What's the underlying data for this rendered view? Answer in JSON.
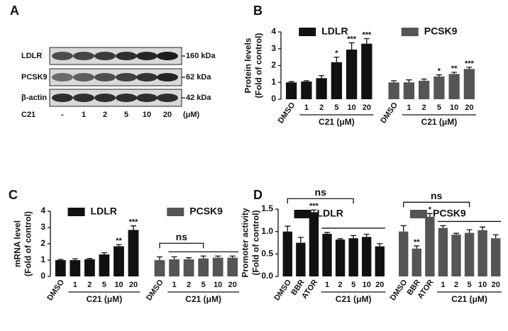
{
  "blot": {
    "panel_label": "A",
    "rows": [
      "LDLR",
      "PCSK9",
      "β-actin"
    ],
    "sizes": [
      "160 kDa",
      "62 kDa",
      "42 kDa"
    ],
    "treatment": "C21",
    "lanes": [
      "-",
      "1",
      "2",
      "5",
      "10",
      "20"
    ],
    "unit": "(μM)"
  },
  "chart_data": [
    {
      "type": "bar",
      "panel_label": "B",
      "ylabel": [
        "Protein levels",
        "(Fold of control)"
      ],
      "categories": [
        "DMSO",
        "1",
        "2",
        "5",
        "10",
        "20",
        "DMSO",
        "1",
        "2",
        "5",
        "10",
        "20"
      ],
      "series": [
        {
          "name": "LDLR",
          "color": "#111111",
          "values": [
            1.0,
            1.05,
            1.25,
            2.2,
            2.95,
            3.3,
            null,
            null,
            null,
            null,
            null,
            null
          ],
          "errors": [
            0.05,
            0.05,
            0.15,
            0.3,
            0.4,
            0.3,
            null,
            null,
            null,
            null,
            null,
            null
          ],
          "annotations": [
            null,
            null,
            null,
            "*",
            "***",
            "***",
            null,
            null,
            null,
            null,
            null,
            null
          ]
        },
        {
          "name": "PCSK9",
          "color": "#555555",
          "values": [
            null,
            null,
            null,
            null,
            null,
            null,
            1.0,
            1.0,
            1.1,
            1.35,
            1.5,
            1.8
          ],
          "errors": [
            null,
            null,
            null,
            null,
            null,
            null,
            0.1,
            0.15,
            0.1,
            0.1,
            0.1,
            0.1
          ],
          "annotations": [
            null,
            null,
            null,
            null,
            null,
            null,
            null,
            null,
            null,
            "*",
            "**",
            "***"
          ]
        }
      ],
      "groups": [
        {
          "label": "C21 (μM)",
          "span": [
            1,
            5
          ]
        },
        {
          "label": "C21 (μM)",
          "span": [
            7,
            11
          ]
        }
      ],
      "brackets": [],
      "ylim": [
        0,
        4
      ],
      "yticks": [
        0,
        1,
        2,
        3,
        4
      ]
    },
    {
      "type": "bar",
      "panel_label": "C",
      "ylabel": [
        "mRNA level",
        "(Fold of control)"
      ],
      "categories": [
        "DMSO",
        "1",
        "2",
        "5",
        "10",
        "20",
        "DMSO",
        "1",
        "2",
        "5",
        "10",
        "20"
      ],
      "series": [
        {
          "name": "LDLR",
          "color": "#111111",
          "values": [
            1.0,
            1.0,
            1.05,
            1.35,
            1.85,
            2.85,
            null,
            null,
            null,
            null,
            null,
            null
          ],
          "errors": [
            0.05,
            0.08,
            0.05,
            0.1,
            0.1,
            0.25,
            null,
            null,
            null,
            null,
            null,
            null
          ],
          "annotations": [
            null,
            null,
            null,
            null,
            "**",
            "***",
            null,
            null,
            null,
            null,
            null,
            null
          ]
        },
        {
          "name": "PCSK9",
          "color": "#555555",
          "values": [
            null,
            null,
            null,
            null,
            null,
            null,
            1.0,
            1.05,
            1.05,
            1.1,
            1.15,
            1.15
          ],
          "errors": [
            null,
            null,
            null,
            null,
            null,
            null,
            0.2,
            0.15,
            0.1,
            0.15,
            0.1,
            0.1
          ],
          "annotations": [
            null,
            null,
            null,
            null,
            null,
            null,
            null,
            null,
            null,
            null,
            null,
            null
          ]
        }
      ],
      "groups": [
        {
          "label": "C21 (μM)",
          "span": [
            1,
            5
          ]
        },
        {
          "label": "C21 (μM)",
          "span": [
            7,
            11
          ]
        }
      ],
      "brackets": [
        {
          "label": "ns",
          "span": [
            6,
            9
          ],
          "sub": [
            7,
            11
          ]
        }
      ],
      "ylim": [
        0,
        4
      ],
      "yticks": [
        0,
        1,
        2,
        3,
        4
      ]
    },
    {
      "type": "bar",
      "panel_label": "D",
      "ylabel": [
        "Promoter activity",
        "(Fold of control)"
      ],
      "categories": [
        "DMSO",
        "BBR",
        "ATOR",
        "1",
        "2",
        "5",
        "10",
        "20",
        "DMSO",
        "BBR",
        "ATOR",
        "1",
        "2",
        "5",
        "10",
        "20"
      ],
      "series": [
        {
          "name": "LDLR",
          "color": "#111111",
          "values": [
            1.0,
            0.75,
            1.43,
            0.95,
            0.82,
            0.85,
            0.88,
            0.67,
            null,
            null,
            null,
            null,
            null,
            null,
            null,
            null
          ],
          "errors": [
            0.12,
            0.12,
            0.05,
            0.03,
            0.02,
            0.06,
            0.06,
            0.06,
            null,
            null,
            null,
            null,
            null,
            null,
            null,
            null
          ],
          "annotations": [
            null,
            null,
            "***",
            null,
            null,
            null,
            null,
            null,
            null,
            null,
            null,
            null,
            null,
            null,
            null,
            null
          ]
        },
        {
          "name": "PCSK9",
          "color": "#555555",
          "values": [
            null,
            null,
            null,
            null,
            null,
            null,
            null,
            null,
            1.0,
            0.62,
            1.33,
            1.08,
            0.93,
            0.97,
            1.03,
            0.85
          ],
          "errors": [
            null,
            null,
            null,
            null,
            null,
            null,
            null,
            null,
            0.13,
            0.06,
            0.07,
            0.05,
            0.03,
            0.07,
            0.07,
            0.08
          ],
          "annotations": [
            null,
            null,
            null,
            null,
            null,
            null,
            null,
            null,
            null,
            "**",
            "*",
            null,
            null,
            null,
            null,
            null
          ]
        }
      ],
      "groups": [
        {
          "label": "C21 (μM)",
          "span": [
            3,
            7
          ]
        },
        {
          "label": "C21 (μM)",
          "span": [
            11,
            15
          ]
        }
      ],
      "brackets": [
        {
          "label": "ns",
          "span": [
            0,
            5
          ],
          "sub": [
            3,
            7
          ]
        },
        {
          "label": "ns",
          "span": [
            8,
            13
          ],
          "sub": [
            11,
            15
          ]
        }
      ],
      "ylim": [
        0,
        1.5
      ],
      "yticks": [
        {
          "value": 0,
          "label": "0.0"
        },
        0.5,
        {
          "value": 1,
          "label": "1.0"
        },
        1.5
      ]
    }
  ]
}
